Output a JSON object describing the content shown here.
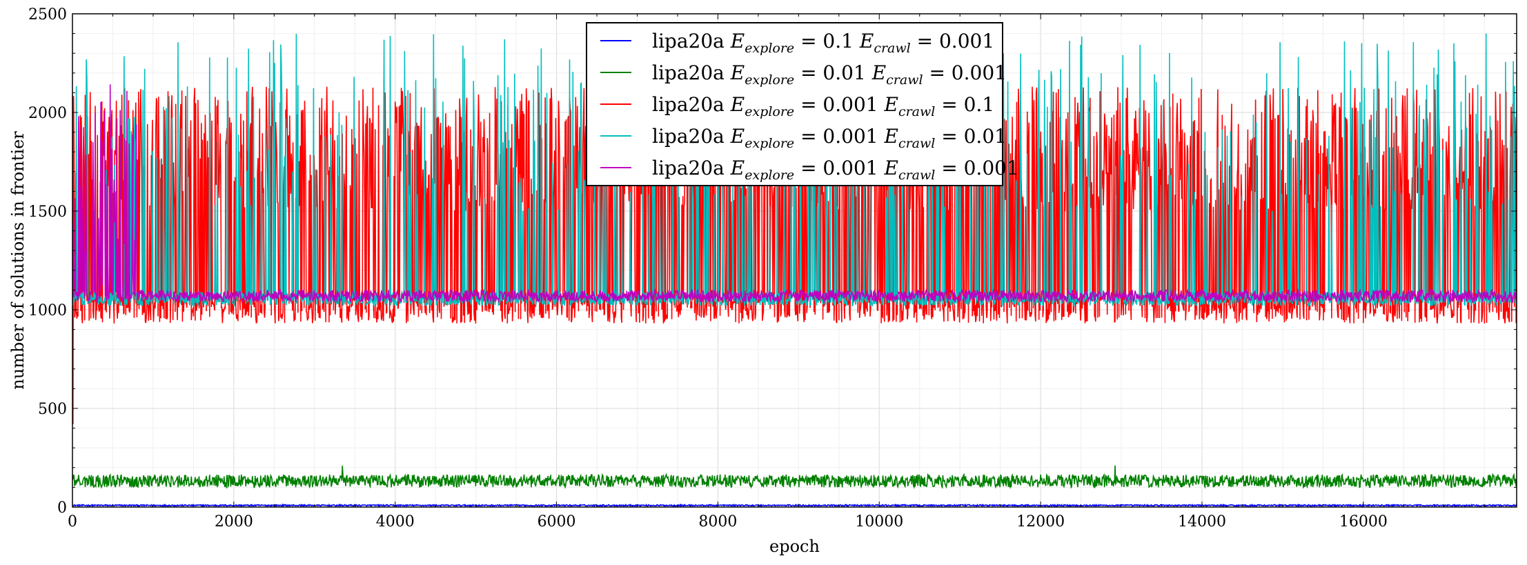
{
  "chart_data": {
    "type": "line",
    "xlabel": "epoch",
    "ylabel": "number of solutions in frontier",
    "xlim": [
      0,
      17900
    ],
    "ylim": [
      0,
      2500
    ],
    "x_ticks": [
      0,
      2000,
      4000,
      6000,
      8000,
      10000,
      12000,
      14000,
      16000
    ],
    "y_ticks": [
      0,
      500,
      1000,
      1500,
      2000,
      2500
    ],
    "grid": true,
    "legend_position": "top-center",
    "series": [
      {
        "name": "lipa20a E_explore = 0.1 E_crawl = 0.001",
        "legend": {
          "prefix": "lipa20a",
          "explore_value": "0.1",
          "crawl_value": "0.001"
        },
        "color": "#0000ff",
        "x_range": [
          0,
          17900
        ],
        "baseline": 8,
        "low": 5,
        "high": 12,
        "spike_max": 12,
        "spike_rate": 0.0
      },
      {
        "name": "lipa20a E_explore = 0.01 E_crawl = 0.001",
        "legend": {
          "prefix": "lipa20a",
          "explore_value": "0.01",
          "crawl_value": "0.001"
        },
        "color": "#008000",
        "x_range": [
          0,
          17900
        ],
        "baseline": 125,
        "low": 100,
        "high": 165,
        "spike_max": 210,
        "spike_rate": 0.0
      },
      {
        "name": "lipa20a E_explore = 0.001 E_crawl = 0.1",
        "legend": {
          "prefix": "lipa20a",
          "explore_value": "0.001",
          "crawl_value": "0.1"
        },
        "color": "#ff0000",
        "x_range": [
          0,
          17900
        ],
        "baseline": 990,
        "low": 930,
        "high": 1050,
        "spike_max": 2130,
        "spike_rate": 0.55,
        "initial_min": 420
      },
      {
        "name": "lipa20a E_explore = 0.001 E_crawl = 0.01",
        "legend": {
          "prefix": "lipa20a",
          "explore_value": "0.001",
          "crawl_value": "0.01"
        },
        "color": "#00bfbf",
        "x_range": [
          0,
          17900
        ],
        "baseline": 1050,
        "low": 1020,
        "high": 1090,
        "spike_max": 2400,
        "spike_rate": 0.12
      },
      {
        "name": "lipa20a E_explore = 0.001 E_crawl = 0.001",
        "legend": {
          "prefix": "lipa20a",
          "explore_value": "0.001",
          "crawl_value": "0.001"
        },
        "color": "#bf00bf",
        "x_range": [
          0,
          17900
        ],
        "baseline": 1070,
        "low": 1040,
        "high": 1100,
        "spike_max": 2160,
        "spike_rate": 0.0,
        "dense_until": 800
      }
    ]
  }
}
